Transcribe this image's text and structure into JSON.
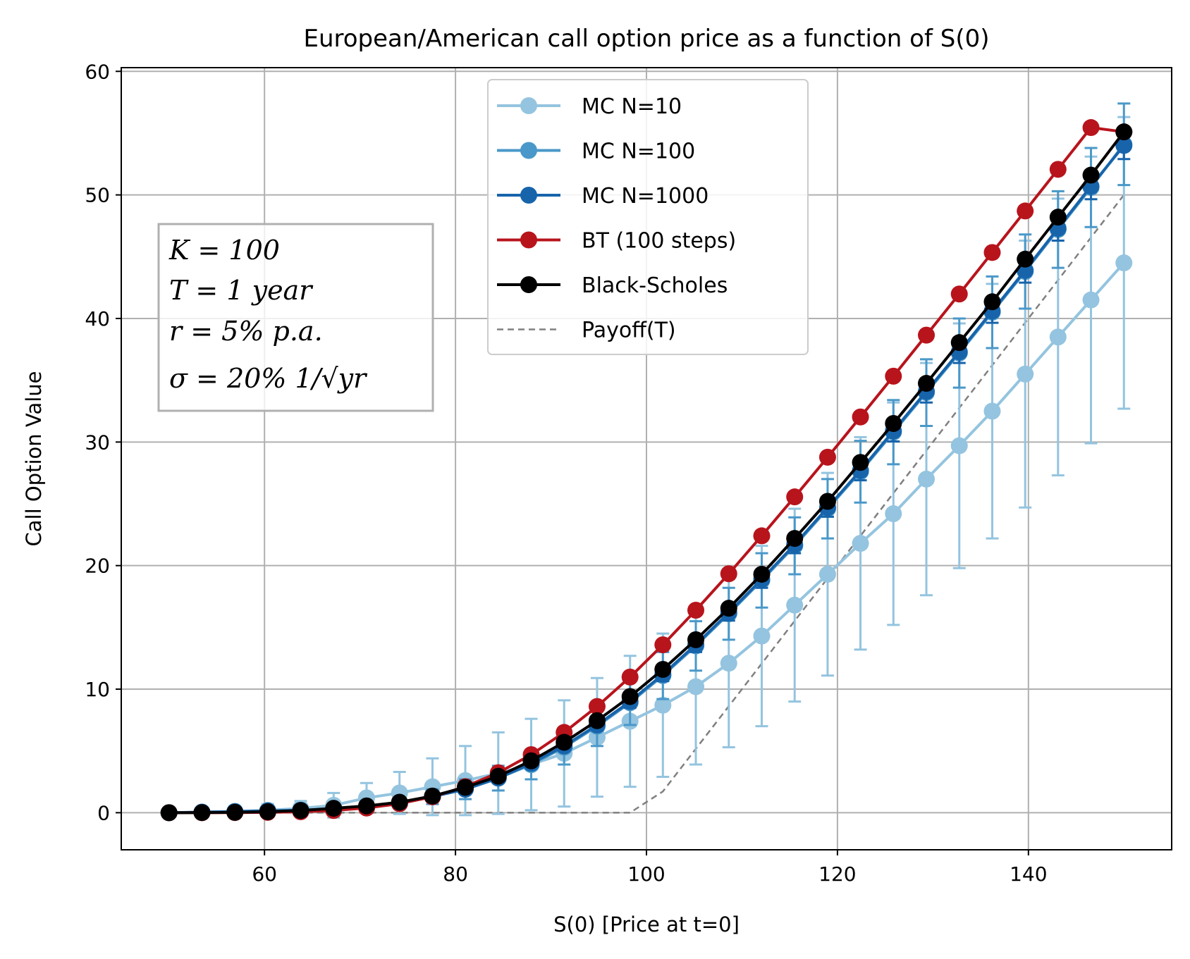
{
  "chart_data": {
    "type": "line",
    "title": "European/American call option price as a function of S(0)",
    "xlabel": "S(0) [Price at t=0]",
    "ylabel": "Call Option Value",
    "xlim": [
      45,
      155
    ],
    "ylim": [
      -3,
      60.3
    ],
    "xticks": [
      60,
      80,
      100,
      120,
      140
    ],
    "yticks": [
      0,
      10,
      20,
      30,
      40,
      50,
      60
    ],
    "grid": true,
    "legend_position": "upper-center",
    "x": [
      50,
      53.45,
      56.9,
      60.34,
      63.79,
      67.24,
      70.69,
      74.14,
      77.59,
      81.03,
      84.48,
      87.93,
      91.38,
      94.83,
      98.28,
      101.72,
      105.17,
      108.62,
      112.07,
      115.52,
      118.97,
      122.41,
      125.86,
      129.31,
      132.76,
      136.21,
      139.66,
      143.1,
      146.55,
      150
    ],
    "series": [
      {
        "name": "MC N=10",
        "color": "#94c4df",
        "values": [
          0.0,
          0.05,
          0.1,
          0.2,
          0.35,
          0.6,
          1.2,
          1.6,
          2.1,
          2.6,
          3.2,
          3.9,
          4.8,
          6.1,
          7.4,
          8.7,
          10.2,
          12.1,
          14.3,
          16.8,
          19.3,
          21.8,
          24.2,
          27.0,
          29.7,
          32.5,
          35.5,
          38.5,
          41.5,
          44.5
        ],
        "errors": [
          0.1,
          0.2,
          0.3,
          0.5,
          0.6,
          1.0,
          1.2,
          1.7,
          2.3,
          2.8,
          3.3,
          3.7,
          4.3,
          4.8,
          5.3,
          5.8,
          6.3,
          6.8,
          7.3,
          7.8,
          8.2,
          8.6,
          9.0,
          9.4,
          9.9,
          10.3,
          10.8,
          11.2,
          11.6,
          11.8
        ]
      },
      {
        "name": "MC N=100",
        "color": "#4a98c9",
        "values": [
          0.0,
          0.05,
          0.1,
          0.15,
          0.2,
          0.3,
          0.45,
          0.75,
          1.3,
          1.9,
          2.8,
          3.9,
          5.3,
          7.0,
          8.9,
          11.1,
          13.5,
          16.1,
          18.8,
          21.6,
          24.6,
          27.6,
          30.8,
          34.0,
          37.2,
          40.5,
          43.8,
          47.2,
          50.6,
          54.1
        ],
        "errors": [
          0.05,
          0.05,
          0.1,
          0.1,
          0.15,
          0.2,
          0.3,
          0.4,
          0.6,
          0.8,
          1.0,
          1.2,
          1.4,
          1.6,
          1.8,
          1.9,
          2.0,
          2.1,
          2.2,
          2.3,
          2.4,
          2.5,
          2.6,
          2.7,
          2.8,
          2.9,
          3.0,
          3.1,
          3.2,
          3.3
        ]
      },
      {
        "name": "MC N=1000",
        "color": "#1764ab",
        "values": [
          0.0,
          0.04,
          0.09,
          0.15,
          0.2,
          0.3,
          0.45,
          0.75,
          1.3,
          1.9,
          2.8,
          4.0,
          5.4,
          7.1,
          9.0,
          11.2,
          13.6,
          16.2,
          18.9,
          21.7,
          24.7,
          27.7,
          30.9,
          34.1,
          37.3,
          40.6,
          43.9,
          47.3,
          50.7,
          54.0
        ],
        "errors": [
          0.02,
          0.02,
          0.03,
          0.04,
          0.05,
          0.07,
          0.1,
          0.15,
          0.2,
          0.25,
          0.3,
          0.35,
          0.4,
          0.45,
          0.5,
          0.55,
          0.6,
          0.65,
          0.7,
          0.7,
          0.75,
          0.8,
          0.85,
          0.9,
          0.9,
          0.95,
          1.0,
          1.0,
          1.05,
          1.1
        ]
      },
      {
        "name": "BT (100 steps)",
        "color": "#b8141c",
        "values": [
          0.0,
          0.0,
          0.01,
          0.03,
          0.08,
          0.18,
          0.38,
          0.73,
          1.29,
          2.11,
          3.24,
          4.7,
          6.5,
          8.6,
          10.98,
          13.59,
          16.39,
          19.34,
          22.41,
          25.56,
          28.77,
          32.03,
          35.33,
          38.65,
          41.98,
          45.34,
          48.7,
          52.07,
          55.45,
          55.1
        ]
      },
      {
        "name": "Black-Scholes",
        "color": "#000000",
        "values": [
          0.0,
          0.01,
          0.03,
          0.08,
          0.18,
          0.36,
          0.55,
          0.85,
          1.35,
          2.05,
          2.95,
          4.2,
          5.7,
          7.45,
          9.4,
          11.6,
          14.0,
          16.55,
          19.3,
          22.2,
          25.2,
          28.35,
          31.5,
          34.75,
          38.05,
          41.35,
          44.8,
          48.2,
          51.6,
          55.1
        ]
      },
      {
        "name": "Payoff(T)",
        "color": "#808080",
        "values": [
          0,
          0,
          0,
          0,
          0,
          0,
          0,
          0,
          0,
          0,
          0,
          0,
          0,
          0,
          0,
          1.72,
          5.17,
          8.62,
          12.07,
          15.52,
          18.97,
          22.41,
          25.86,
          29.31,
          32.76,
          36.21,
          39.66,
          43.1,
          46.55,
          50
        ]
      }
    ],
    "annotation": {
      "lines": [
        "K = 100",
        "T = 1 year",
        "r = 5% p.a.",
        "σ = 20% 1/√yr"
      ]
    }
  }
}
